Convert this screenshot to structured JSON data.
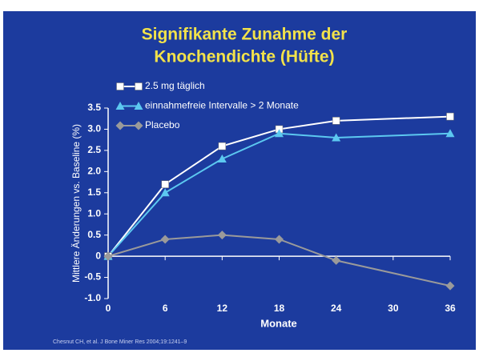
{
  "chart_data": {
    "type": "line",
    "title": [
      "Signifikante Zunahme der",
      "Knochendichte (Hüfte)"
    ],
    "x_label": "Monate",
    "y_label": "Mittlere Änderungen vs. Baseline (%)",
    "footnote": "Chesnut CH, et al. J Bone Miner Res 2004;19:1241–9",
    "x": [
      0,
      6,
      12,
      18,
      24,
      36
    ],
    "series": [
      {
        "name": "2.5 mg täglich",
        "color": "#ffffff",
        "marker": "square",
        "values": [
          0,
          1.7,
          2.6,
          3.0,
          3.2,
          3.3
        ]
      },
      {
        "name": "einnahmefreie Intervalle > 2 Monate",
        "color": "#5cc8f0",
        "marker": "triangle",
        "values": [
          0,
          1.5,
          2.3,
          2.9,
          2.8,
          2.9
        ]
      },
      {
        "name": "Placebo",
        "color": "#9a9a9a",
        "marker": "diamond",
        "values": [
          0,
          0.4,
          0.5,
          0.4,
          -0.1,
          -0.7
        ]
      }
    ],
    "xlim": [
      0,
      36
    ],
    "xticks": [
      0,
      6,
      12,
      18,
      24,
      30,
      36
    ],
    "ylim": [
      -1,
      3.5
    ],
    "yticks": [
      {
        "value": 3.5,
        "label": "3.5"
      },
      {
        "value": 3,
        "label": "3.0"
      },
      {
        "value": 2.5,
        "label": "2.5"
      },
      {
        "value": 2,
        "label": "2.0"
      },
      {
        "value": 1.5,
        "label": "1.5"
      },
      {
        "value": 1,
        "label": "1.0"
      },
      {
        "value": 0.5,
        "label": "0.5"
      },
      0,
      {
        "value": -0.5,
        "label": "-0.5"
      },
      {
        "value": -1,
        "label": "-1.0"
      }
    ],
    "legend": "top-left"
  }
}
